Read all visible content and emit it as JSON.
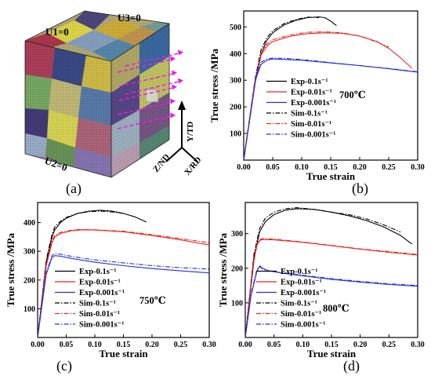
{
  "panel_a": {
    "caption": "(a)",
    "bc_labels": [
      "U1=0",
      "U3=0",
      "U2=0"
    ],
    "axes_labels": [
      "Y/TD",
      "Z/ND",
      "X/RD"
    ]
  },
  "colors": {
    "c1": "#000000",
    "c2": "#e8261e",
    "c3": "#2430d8",
    "arrow": "#e81ce0"
  },
  "chart_data": [
    {
      "type": "line",
      "caption": "(b)",
      "temperature": "700℃",
      "xlabel": "True strain",
      "ylabel": "True stress /MPa",
      "xlim": [
        0,
        0.3
      ],
      "ylim": [
        0,
        560
      ],
      "xticks": [
        "0.00",
        "0.05",
        "0.10",
        "0.15",
        "0.20",
        "0.25",
        "0.30"
      ],
      "yticks": [
        "100",
        "200",
        "300",
        "400",
        "500"
      ],
      "legend_placement": "center-right",
      "series": [
        {
          "name": "Exp-0.1s⁻¹",
          "color_key": "c1",
          "dash": "solid",
          "x": [
            0,
            0.02,
            0.03,
            0.04,
            0.05,
            0.07,
            0.09,
            0.11,
            0.13,
            0.14,
            0.15,
            0.16
          ],
          "y": [
            0,
            300,
            400,
            450,
            478,
            508,
            525,
            535,
            538,
            535,
            522,
            505
          ]
        },
        {
          "name": "Exp-0.01s⁻¹",
          "color_key": "c2",
          "dash": "solid",
          "x": [
            0,
            0.02,
            0.03,
            0.04,
            0.05,
            0.08,
            0.11,
            0.14,
            0.17,
            0.2,
            0.23,
            0.25,
            0.27,
            0.29
          ],
          "y": [
            0,
            290,
            395,
            428,
            445,
            465,
            475,
            478,
            476,
            466,
            445,
            420,
            385,
            345
          ]
        },
        {
          "name": "Exp-0.001s⁻¹",
          "color_key": "c3",
          "dash": "solid",
          "x": [
            0,
            0.02,
            0.03,
            0.04,
            0.05,
            0.07,
            0.1,
            0.15,
            0.2,
            0.25,
            0.3
          ],
          "y": [
            0,
            300,
            360,
            375,
            380,
            378,
            375,
            365,
            355,
            343,
            330
          ]
        },
        {
          "name": "Sim-0.1s⁻¹",
          "color_key": "c1",
          "dash": "dashdot",
          "x": [
            0,
            0.02,
            0.03,
            0.04,
            0.05,
            0.07,
            0.09,
            0.11,
            0.13
          ],
          "y": [
            0,
            310,
            415,
            460,
            485,
            513,
            528,
            537,
            535
          ]
        },
        {
          "name": "Sim-0.01s⁻¹",
          "color_key": "c2",
          "dash": "dashdot",
          "x": [
            0,
            0.02,
            0.03,
            0.04,
            0.05,
            0.08,
            0.11,
            0.14,
            0.17,
            0.2,
            0.23,
            0.25
          ],
          "y": [
            0,
            300,
            402,
            435,
            452,
            470,
            480,
            482,
            478,
            466,
            443,
            425
          ]
        },
        {
          "name": "Sim-0.001s⁻¹",
          "color_key": "c3",
          "dash": "dashdot",
          "x": [
            0,
            0.02,
            0.03,
            0.04,
            0.05,
            0.07,
            0.1,
            0.15,
            0.2,
            0.25,
            0.3
          ],
          "y": [
            0,
            310,
            368,
            380,
            383,
            382,
            378,
            366,
            355,
            344,
            332
          ]
        }
      ]
    },
    {
      "type": "line",
      "caption": "(c)",
      "temperature": "750℃",
      "xlabel": "True strain",
      "ylabel": "True stress /MPa",
      "xlim": [
        0,
        0.3
      ],
      "ylim": [
        0,
        470
      ],
      "xticks": [
        "0.00",
        "0.05",
        "0.10",
        "0.15",
        "0.20",
        "0.25",
        "0.30"
      ],
      "yticks": [
        "100",
        "200",
        "300",
        "400"
      ],
      "legend_placement": "lower-left",
      "series": [
        {
          "name": "Exp-0.1s⁻¹",
          "color_key": "c1",
          "dash": "solid",
          "x": [
            0,
            0.015,
            0.025,
            0.03,
            0.04,
            0.05,
            0.07,
            0.09,
            0.11,
            0.13,
            0.15,
            0.17,
            0.19
          ],
          "y": [
            0,
            260,
            350,
            375,
            400,
            415,
            432,
            440,
            443,
            440,
            432,
            420,
            402
          ]
        },
        {
          "name": "Exp-0.01s⁻¹",
          "color_key": "c2",
          "dash": "solid",
          "x": [
            0,
            0.015,
            0.025,
            0.03,
            0.04,
            0.06,
            0.08,
            0.1,
            0.15,
            0.2,
            0.25,
            0.3
          ],
          "y": [
            0,
            250,
            330,
            350,
            362,
            372,
            375,
            374,
            368,
            355,
            340,
            322
          ]
        },
        {
          "name": "Exp-0.001s⁻¹",
          "color_key": "c3",
          "dash": "solid",
          "x": [
            0,
            0.015,
            0.025,
            0.03,
            0.04,
            0.06,
            0.1,
            0.15,
            0.2,
            0.25,
            0.3
          ],
          "y": [
            0,
            220,
            278,
            285,
            283,
            275,
            262,
            250,
            240,
            232,
            225
          ]
        },
        {
          "name": "Sim-0.1s⁻¹",
          "color_key": "c1",
          "dash": "dashdot",
          "x": [
            0,
            0.015,
            0.025,
            0.03,
            0.04,
            0.05,
            0.07,
            0.09,
            0.11,
            0.13,
            0.15
          ],
          "y": [
            0,
            270,
            358,
            385,
            405,
            418,
            432,
            438,
            440,
            437,
            432
          ]
        },
        {
          "name": "Sim-0.01s⁻¹",
          "color_key": "c2",
          "dash": "dashdot",
          "x": [
            0,
            0.015,
            0.025,
            0.03,
            0.04,
            0.06,
            0.08,
            0.1,
            0.15,
            0.2,
            0.25,
            0.3
          ],
          "y": [
            0,
            255,
            338,
            356,
            366,
            374,
            376,
            375,
            370,
            358,
            344,
            330
          ]
        },
        {
          "name": "Sim-0.001s⁻¹",
          "color_key": "c3",
          "dash": "dashdot",
          "x": [
            0,
            0.015,
            0.025,
            0.03,
            0.04,
            0.06,
            0.1,
            0.15,
            0.2,
            0.25,
            0.3
          ],
          "y": [
            0,
            225,
            285,
            292,
            290,
            282,
            270,
            260,
            250,
            243,
            238
          ]
        }
      ]
    },
    {
      "type": "line",
      "caption": "(d)",
      "temperature": "800℃",
      "xlabel": "True strain",
      "ylabel": "True stress /MPa",
      "xlim": [
        0,
        0.3
      ],
      "ylim": [
        0,
        390
      ],
      "xticks": [
        "0.00",
        "0.05",
        "0.10",
        "0.15",
        "0.20",
        "0.25",
        "0.30"
      ],
      "yticks": [
        "100",
        "200",
        "300"
      ],
      "legend_placement": "lower-left",
      "series": [
        {
          "name": "Exp-0.1s⁻¹",
          "color_key": "c1",
          "dash": "solid",
          "x": [
            0,
            0.015,
            0.025,
            0.035,
            0.05,
            0.07,
            0.09,
            0.12,
            0.15,
            0.18,
            0.21,
            0.24,
            0.27,
            0.29
          ],
          "y": [
            0,
            230,
            305,
            335,
            355,
            368,
            372,
            370,
            362,
            352,
            338,
            320,
            295,
            270
          ]
        },
        {
          "name": "Exp-0.01s⁻¹",
          "color_key": "c2",
          "dash": "solid",
          "x": [
            0,
            0.015,
            0.02,
            0.025,
            0.03,
            0.05,
            0.1,
            0.15,
            0.2,
            0.25,
            0.3
          ],
          "y": [
            0,
            220,
            265,
            280,
            283,
            282,
            275,
            265,
            255,
            246,
            238
          ]
        },
        {
          "name": "Exp-0.001s⁻¹",
          "color_key": "c3",
          "dash": "solid",
          "x": [
            0,
            0.01,
            0.02,
            0.025,
            0.03,
            0.04,
            0.06,
            0.1,
            0.15,
            0.2,
            0.25,
            0.3
          ],
          "y": [
            0,
            120,
            190,
            207,
            200,
            193,
            187,
            178,
            168,
            160,
            153,
            148
          ]
        },
        {
          "name": "Sim-0.1s⁻¹",
          "color_key": "c1",
          "dash": "dashdot",
          "x": [
            0,
            0.015,
            0.025,
            0.035,
            0.05,
            0.07,
            0.09,
            0.12,
            0.15,
            0.18,
            0.21,
            0.24,
            0.27
          ],
          "y": [
            0,
            240,
            315,
            345,
            362,
            372,
            375,
            370,
            362,
            355,
            343,
            326,
            305
          ]
        },
        {
          "name": "Sim-0.01s⁻¹",
          "color_key": "c2",
          "dash": "dashdot",
          "x": [
            0,
            0.015,
            0.02,
            0.025,
            0.03,
            0.05,
            0.1,
            0.15,
            0.2,
            0.25,
            0.3
          ],
          "y": [
            0,
            225,
            270,
            283,
            286,
            284,
            276,
            266,
            256,
            248,
            240
          ]
        },
        {
          "name": "Sim-0.001s⁻¹",
          "color_key": "c3",
          "dash": "dashdot",
          "x": [
            0,
            0.01,
            0.02,
            0.025,
            0.03,
            0.04,
            0.06,
            0.1,
            0.15,
            0.2,
            0.25,
            0.3
          ],
          "y": [
            0,
            125,
            195,
            205,
            198,
            192,
            188,
            180,
            170,
            162,
            155,
            150
          ]
        }
      ]
    }
  ]
}
